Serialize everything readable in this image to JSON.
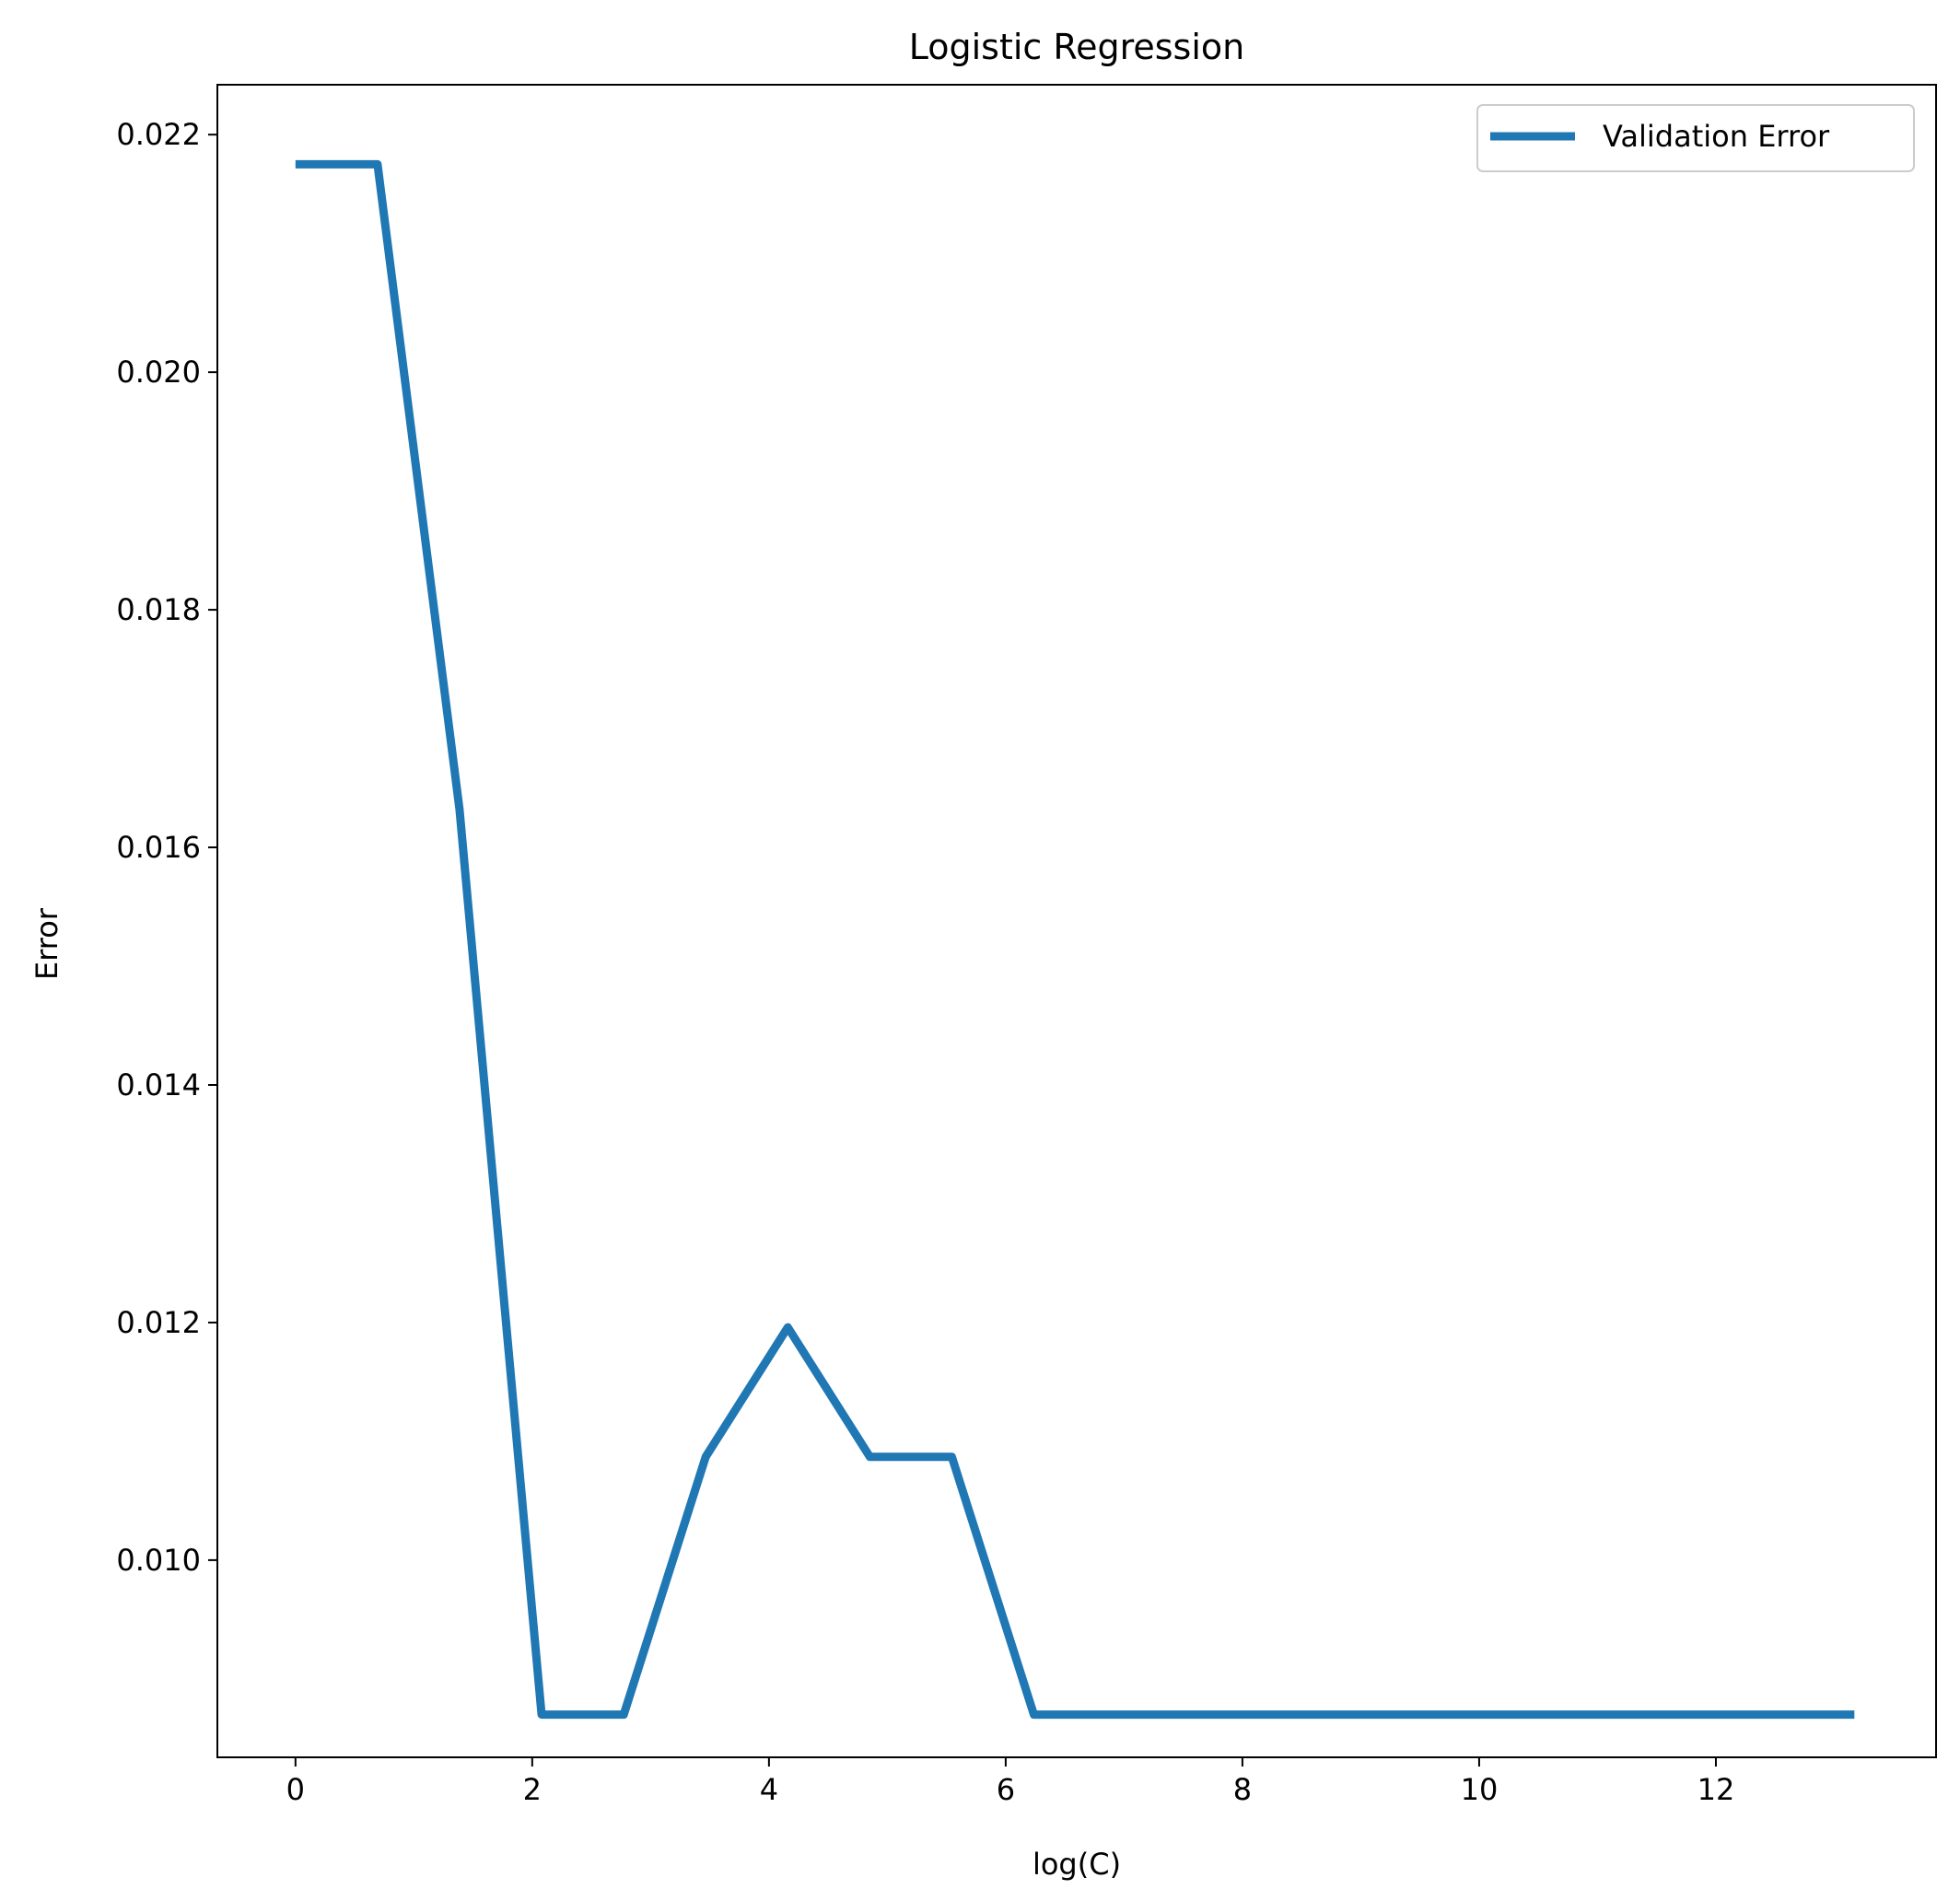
{
  "chart_data": {
    "type": "line",
    "title": "Logistic Regression",
    "xlabel": "log(C)",
    "ylabel": "Error",
    "xlim": [
      -0.66,
      13.86
    ],
    "ylim": [
      0.00834,
      0.02242
    ],
    "xticks": [
      0,
      2,
      4,
      6,
      8,
      10,
      12
    ],
    "yticks": [
      0.01,
      0.012,
      0.014,
      0.016,
      0.018,
      0.02,
      0.022
    ],
    "grid": false,
    "legend": {
      "position": "top-right"
    },
    "series": [
      {
        "name": "Validation Error",
        "color": "#1f77b4",
        "x": [
          0,
          0.693,
          1.386,
          2.079,
          2.773,
          3.466,
          4.159,
          4.852,
          5.545,
          6.238,
          6.931,
          7.625,
          8.318,
          9.011,
          9.704,
          10.397,
          11.09,
          11.784,
          12.477,
          13.17
        ],
        "y": [
          0.02175,
          0.02175,
          0.01632,
          0.0087,
          0.0087,
          0.01087,
          0.01196,
          0.01087,
          0.01087,
          0.0087,
          0.0087,
          0.0087,
          0.0087,
          0.0087,
          0.0087,
          0.0087,
          0.0087,
          0.0087,
          0.0087,
          0.0087
        ]
      }
    ]
  }
}
